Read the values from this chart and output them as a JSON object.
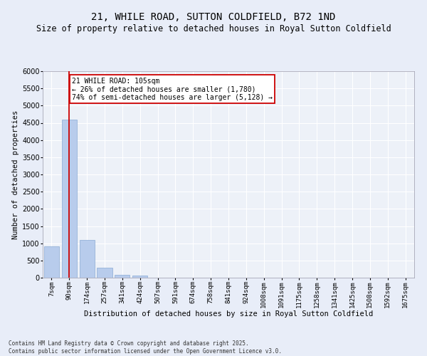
{
  "title": "21, WHILE ROAD, SUTTON COLDFIELD, B72 1ND",
  "subtitle": "Size of property relative to detached houses in Royal Sutton Coldfield",
  "xlabel": "Distribution of detached houses by size in Royal Sutton Coldfield",
  "ylabel": "Number of detached properties",
  "categories": [
    "7sqm",
    "90sqm",
    "174sqm",
    "257sqm",
    "341sqm",
    "424sqm",
    "507sqm",
    "591sqm",
    "674sqm",
    "758sqm",
    "841sqm",
    "924sqm",
    "1008sqm",
    "1091sqm",
    "1175sqm",
    "1258sqm",
    "1341sqm",
    "1425sqm",
    "1508sqm",
    "1592sqm",
    "1675sqm"
  ],
  "values": [
    920,
    4600,
    1090,
    300,
    80,
    55,
    0,
    0,
    0,
    0,
    0,
    0,
    0,
    0,
    0,
    0,
    0,
    0,
    0,
    0,
    0
  ],
  "bar_color": "#b8ccec",
  "bar_edge_color": "#8aaad4",
  "vline_x_index": 1,
  "vline_color": "#cc0000",
  "annotation_text": "21 WHILE ROAD: 105sqm\n← 26% of detached houses are smaller (1,780)\n74% of semi-detached houses are larger (5,128) →",
  "annotation_box_color": "#cc0000",
  "ylim": [
    0,
    6000
  ],
  "yticks": [
    0,
    500,
    1000,
    1500,
    2000,
    2500,
    3000,
    3500,
    4000,
    4500,
    5000,
    5500,
    6000
  ],
  "footer": "Contains HM Land Registry data © Crown copyright and database right 2025.\nContains public sector information licensed under the Open Government Licence v3.0.",
  "bg_color": "#e8edf8",
  "plot_bg_color": "#edf1f8",
  "grid_color": "#ffffff",
  "title_fontsize": 10,
  "subtitle_fontsize": 8.5,
  "ylabel_fontsize": 7.5,
  "xlabel_fontsize": 7.5,
  "tick_fontsize": 6.5,
  "annot_fontsize": 7,
  "footer_fontsize": 5.5
}
